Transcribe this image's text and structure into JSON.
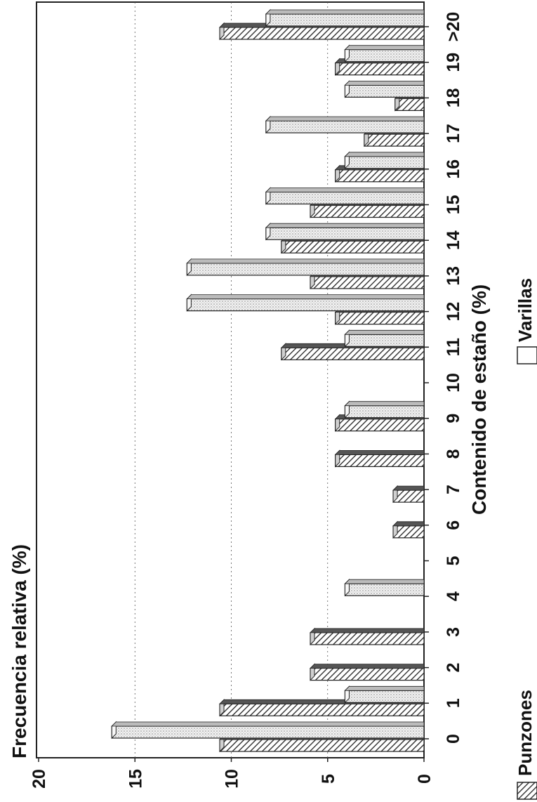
{
  "chart_data": {
    "type": "bar",
    "title": "",
    "ylabel": "Frecuencia relativa (%)",
    "xlabel": "Contenido de estaño (%)",
    "ylim": [
      0,
      20
    ],
    "yticks": [
      "0",
      "5",
      "10",
      "15",
      "20"
    ],
    "grid": true,
    "legend_position": "bottom",
    "categories": [
      "0",
      "1",
      "2",
      "3",
      "4",
      "5",
      "6",
      "7",
      "8",
      "9",
      "10",
      "11",
      "12",
      "13",
      "14",
      "15",
      "16",
      "17",
      "18",
      "19",
      ">20"
    ],
    "series": [
      {
        "name": "Punzones",
        "pattern": "hatched",
        "values": [
          10.6,
          10.6,
          5.9,
          5.9,
          0,
          0,
          1.6,
          1.6,
          4.6,
          4.6,
          0,
          7.4,
          4.6,
          5.9,
          7.4,
          5.9,
          4.6,
          3.1,
          1.5,
          4.6,
          10.6
        ]
      },
      {
        "name": "Varillas",
        "pattern": "dotted",
        "values": [
          16.2,
          4.1,
          0,
          0,
          4.1,
          0,
          0,
          0,
          0,
          4.1,
          0,
          4.1,
          12.3,
          12.3,
          8.2,
          8.2,
          4.1,
          8.2,
          4.1,
          4.1,
          8.2
        ]
      }
    ]
  }
}
